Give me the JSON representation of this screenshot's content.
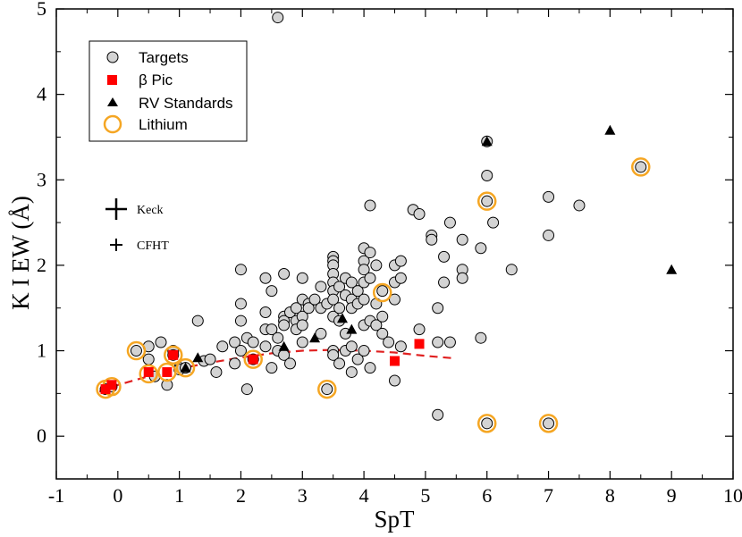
{
  "chart_data": {
    "type": "scatter",
    "xlabel": "SpT",
    "ylabel": "K I EW (Å)",
    "xlim": [
      -1,
      10
    ],
    "ylim": [
      -0.5,
      5
    ],
    "xticks": [
      "-1",
      "0",
      "1",
      "2",
      "3",
      "4",
      "5",
      "6",
      "7",
      "8",
      "9",
      "10"
    ],
    "yticks": [
      "0",
      "1",
      "2",
      "3",
      "4",
      "5"
    ],
    "grid": false,
    "legend_position": "top-left",
    "legend": [
      {
        "label": "Targets",
        "marker": "circle",
        "color": "#d3d3d3"
      },
      {
        "label": "β Pic",
        "marker": "square",
        "color": "#ff0000"
      },
      {
        "label": "RV Standards",
        "marker": "triangle",
        "color": "#000000"
      },
      {
        "label": "Lithium",
        "marker": "ring",
        "color": "#f5a623"
      }
    ],
    "instrument_key": [
      {
        "label": "Keck",
        "marker": "plus-large"
      },
      {
        "label": "CFHT",
        "marker": "plus-small"
      }
    ],
    "fit_curve": {
      "style": "dashed",
      "color": "#e02020",
      "x": [
        -0.3,
        0.0,
        0.5,
        1.0,
        1.5,
        2.0,
        2.5,
        3.0,
        3.5,
        4.0,
        4.5,
        5.0,
        5.5
      ],
      "y": [
        0.52,
        0.6,
        0.7,
        0.79,
        0.86,
        0.92,
        0.97,
        1.0,
        1.01,
        1.0,
        0.98,
        0.94,
        0.91
      ]
    },
    "series": [
      {
        "name": "Targets",
        "points": [
          [
            -0.2,
            0.55
          ],
          [
            -0.1,
            0.58
          ],
          [
            0.3,
            1.0
          ],
          [
            0.5,
            1.05
          ],
          [
            0.5,
            0.9
          ],
          [
            0.6,
            0.7
          ],
          [
            0.7,
            1.1
          ],
          [
            0.8,
            0.6
          ],
          [
            0.9,
            1.0
          ],
          [
            0.9,
            0.95
          ],
          [
            1.0,
            0.8
          ],
          [
            1.0,
            0.78
          ],
          [
            1.1,
            0.8
          ],
          [
            1.3,
            1.35
          ],
          [
            1.4,
            0.88
          ],
          [
            1.5,
            0.9
          ],
          [
            1.6,
            0.75
          ],
          [
            1.7,
            1.05
          ],
          [
            1.9,
            1.1
          ],
          [
            1.9,
            0.85
          ],
          [
            2.0,
            1.95
          ],
          [
            2.0,
            1.55
          ],
          [
            2.0,
            1.35
          ],
          [
            2.0,
            1.0
          ],
          [
            2.1,
            1.15
          ],
          [
            2.1,
            0.55
          ],
          [
            2.2,
            1.1
          ],
          [
            2.2,
            0.9
          ],
          [
            2.4,
            1.85
          ],
          [
            2.4,
            1.45
          ],
          [
            2.4,
            1.25
          ],
          [
            2.4,
            1.05
          ],
          [
            2.5,
            1.7
          ],
          [
            2.5,
            1.25
          ],
          [
            2.5,
            0.8
          ],
          [
            2.6,
            1.15
          ],
          [
            2.6,
            1.0
          ],
          [
            2.7,
            1.9
          ],
          [
            2.7,
            1.4
          ],
          [
            2.7,
            1.35
          ],
          [
            2.7,
            1.3
          ],
          [
            2.7,
            0.95
          ],
          [
            2.8,
            1.45
          ],
          [
            2.8,
            0.85
          ],
          [
            2.9,
            1.5
          ],
          [
            2.9,
            1.35
          ],
          [
            2.9,
            1.25
          ],
          [
            3.0,
            1.85
          ],
          [
            3.0,
            1.6
          ],
          [
            3.0,
            1.4
          ],
          [
            3.0,
            1.3
          ],
          [
            3.0,
            1.1
          ],
          [
            3.1,
            1.55
          ],
          [
            3.1,
            1.5
          ],
          [
            3.2,
            1.6
          ],
          [
            3.3,
            1.75
          ],
          [
            3.3,
            1.5
          ],
          [
            3.3,
            1.2
          ],
          [
            3.4,
            0.55
          ],
          [
            3.4,
            1.55
          ],
          [
            3.5,
            2.1
          ],
          [
            3.5,
            2.05
          ],
          [
            3.5,
            2.0
          ],
          [
            3.5,
            1.9
          ],
          [
            3.5,
            1.8
          ],
          [
            3.5,
            1.7
          ],
          [
            3.5,
            1.6
          ],
          [
            3.5,
            1.4
          ],
          [
            3.5,
            1.0
          ],
          [
            3.5,
            0.95
          ],
          [
            3.6,
            1.75
          ],
          [
            3.6,
            1.5
          ],
          [
            3.6,
            1.35
          ],
          [
            3.6,
            0.85
          ],
          [
            3.7,
            1.85
          ],
          [
            3.7,
            1.65
          ],
          [
            3.7,
            1.2
          ],
          [
            3.7,
            1.0
          ],
          [
            3.8,
            1.8
          ],
          [
            3.8,
            1.6
          ],
          [
            3.8,
            1.5
          ],
          [
            3.8,
            1.05
          ],
          [
            3.8,
            0.75
          ],
          [
            3.9,
            1.7
          ],
          [
            3.9,
            1.55
          ],
          [
            3.9,
            0.9
          ],
          [
            4.0,
            2.2
          ],
          [
            4.0,
            2.05
          ],
          [
            4.0,
            1.95
          ],
          [
            4.0,
            1.8
          ],
          [
            4.0,
            1.6
          ],
          [
            4.0,
            1.3
          ],
          [
            4.0,
            1.0
          ],
          [
            4.1,
            2.7
          ],
          [
            4.1,
            2.15
          ],
          [
            4.1,
            1.85
          ],
          [
            4.1,
            1.35
          ],
          [
            4.1,
            0.8
          ],
          [
            4.2,
            2.0
          ],
          [
            4.2,
            1.55
          ],
          [
            4.2,
            1.3
          ],
          [
            4.3,
            1.7
          ],
          [
            4.3,
            1.4
          ],
          [
            4.3,
            1.2
          ],
          [
            4.4,
            1.1
          ],
          [
            4.5,
            2.0
          ],
          [
            4.5,
            1.8
          ],
          [
            4.5,
            1.6
          ],
          [
            4.5,
            0.65
          ],
          [
            4.6,
            2.05
          ],
          [
            4.6,
            1.85
          ],
          [
            4.6,
            1.05
          ],
          [
            4.8,
            2.65
          ],
          [
            4.9,
            2.6
          ],
          [
            4.9,
            1.25
          ],
          [
            5.1,
            2.35
          ],
          [
            5.1,
            2.3
          ],
          [
            5.2,
            1.5
          ],
          [
            5.2,
            1.1
          ],
          [
            5.2,
            0.25
          ],
          [
            5.3,
            2.1
          ],
          [
            5.3,
            1.8
          ],
          [
            5.4,
            2.5
          ],
          [
            5.4,
            1.1
          ],
          [
            5.6,
            2.3
          ],
          [
            5.6,
            1.95
          ],
          [
            5.6,
            1.85
          ],
          [
            5.9,
            2.2
          ],
          [
            5.9,
            1.15
          ],
          [
            6.0,
            3.45
          ],
          [
            6.0,
            3.05
          ],
          [
            6.0,
            2.75
          ],
          [
            6.0,
            0.15
          ],
          [
            6.1,
            2.5
          ],
          [
            6.4,
            1.95
          ],
          [
            7.0,
            2.8
          ],
          [
            7.0,
            2.35
          ],
          [
            7.0,
            0.15
          ],
          [
            7.5,
            2.7
          ],
          [
            8.5,
            3.15
          ],
          [
            2.6,
            4.9
          ]
        ]
      },
      {
        "name": "β Pic",
        "points": [
          [
            -0.2,
            0.55
          ],
          [
            -0.1,
            0.6
          ],
          [
            0.5,
            0.75
          ],
          [
            0.8,
            0.75
          ],
          [
            0.9,
            0.95
          ],
          [
            2.2,
            0.9
          ],
          [
            4.5,
            0.88
          ],
          [
            4.9,
            1.08
          ]
        ]
      },
      {
        "name": "RV Standards",
        "points": [
          [
            1.1,
            0.8
          ],
          [
            1.3,
            0.92
          ],
          [
            2.7,
            1.05
          ],
          [
            3.2,
            1.15
          ],
          [
            3.65,
            1.38
          ],
          [
            3.8,
            1.25
          ],
          [
            6.0,
            3.45
          ],
          [
            8.0,
            3.58
          ],
          [
            9.0,
            1.95
          ]
        ]
      },
      {
        "name": "Lithium",
        "points": [
          [
            -0.2,
            0.55
          ],
          [
            -0.1,
            0.58
          ],
          [
            0.3,
            1.0
          ],
          [
            0.5,
            0.73
          ],
          [
            0.9,
            0.95
          ],
          [
            0.8,
            0.75
          ],
          [
            1.1,
            0.8
          ],
          [
            2.2,
            0.9
          ],
          [
            3.4,
            0.55
          ],
          [
            4.3,
            1.68
          ],
          [
            6.0,
            2.75
          ],
          [
            6.0,
            0.15
          ],
          [
            7.0,
            0.15
          ],
          [
            8.5,
            3.15
          ]
        ]
      }
    ]
  }
}
